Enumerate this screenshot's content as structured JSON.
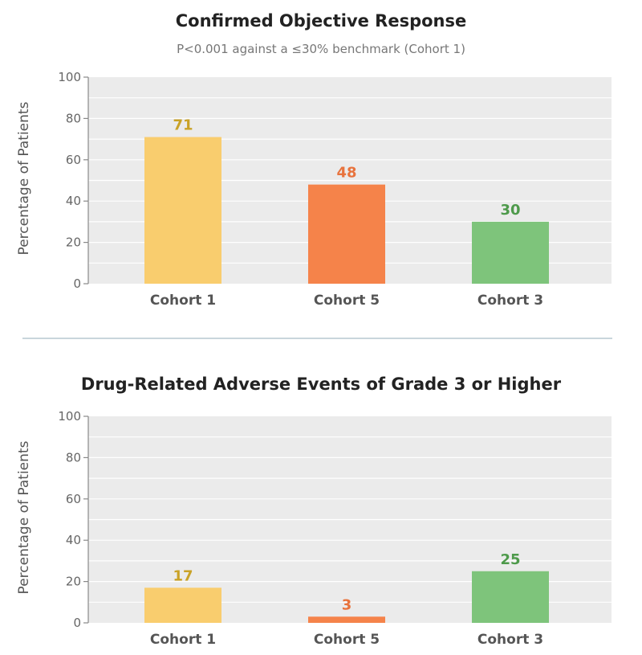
{
  "chart_data": [
    {
      "type": "bar",
      "title": "Confirmed Objective Response",
      "subtitle": "P<0.001 against a ≤30% benchmark (Cohort 1)",
      "ylabel": "Percentage of Patients",
      "xlabel": "",
      "ylim": [
        0,
        100
      ],
      "yticks": [
        "0",
        "20",
        "40",
        "60",
        "80",
        "100"
      ],
      "categories": [
        "Cohort 1",
        "Cohort 5",
        "Cohort 3"
      ],
      "values": [
        71,
        48,
        30
      ],
      "labels": [
        "71",
        "48",
        "30"
      ],
      "grid": true
    },
    {
      "type": "bar",
      "title": "Drug-Related Adverse Events of Grade 3 or Higher",
      "ylabel": "Percentage of Patients",
      "xlabel": "",
      "ylim": [
        0,
        100
      ],
      "yticks": [
        "0",
        "20",
        "40",
        "60",
        "80",
        "100"
      ],
      "categories": [
        "Cohort 1",
        "Cohort 5",
        "Cohort 3"
      ],
      "values": [
        17,
        3,
        25
      ],
      "labels": [
        "17",
        "3",
        "25"
      ],
      "grid": true
    }
  ],
  "colors": {
    "bars": [
      "#f9cd6e",
      "#f5834a",
      "#7ec47b"
    ],
    "labels": [
      "#c9a227",
      "#e8733d",
      "#4e9a4b"
    ],
    "plot_bg": "#ebebeb",
    "grid": "#ffffff"
  }
}
